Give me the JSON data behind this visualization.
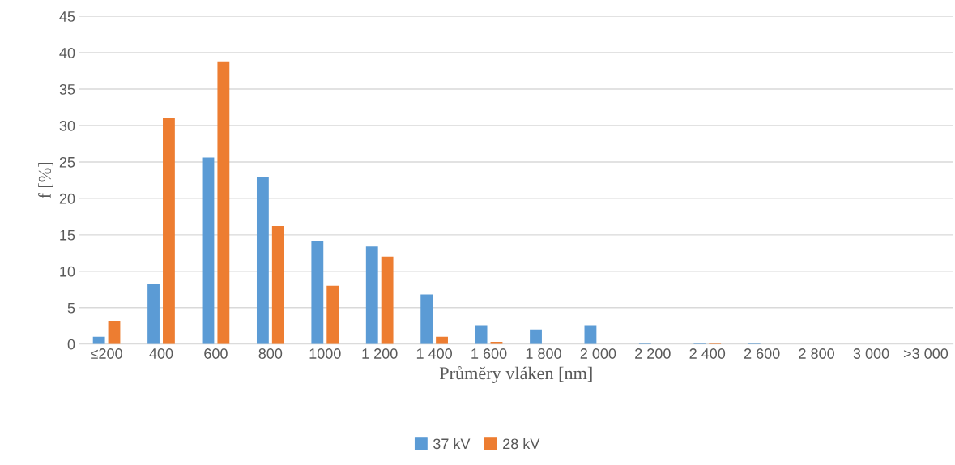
{
  "chart_data": {
    "type": "bar",
    "xlabel": "Průměry vláken [nm]",
    "ylabel": "f [%]",
    "categories": [
      "≤200",
      "400",
      "600",
      "800",
      "1000",
      "1 200",
      "1 400",
      "1 600",
      "1 800",
      "2 000",
      "2 200",
      "2 400",
      "2 600",
      "2 800",
      "3 000",
      ">3 000"
    ],
    "series": [
      {
        "name": "37 kV",
        "color": "#5b9bd5",
        "values": [
          1.0,
          8.2,
          25.6,
          23.0,
          14.2,
          13.4,
          6.8,
          2.6,
          2.0,
          2.6,
          0.2,
          0.2,
          0.2,
          0,
          0,
          0
        ]
      },
      {
        "name": "28 kV",
        "color": "#ed7d31",
        "values": [
          3.2,
          31.0,
          38.8,
          16.2,
          8.0,
          12.0,
          1.0,
          0.3,
          0,
          0,
          0,
          0.2,
          0,
          0,
          0,
          0
        ]
      }
    ],
    "ylim": [
      0,
      45
    ],
    "yticks": [
      0,
      5,
      10,
      15,
      20,
      25,
      30,
      35,
      40,
      45
    ],
    "grid": "y",
    "legend": "bottom"
  }
}
